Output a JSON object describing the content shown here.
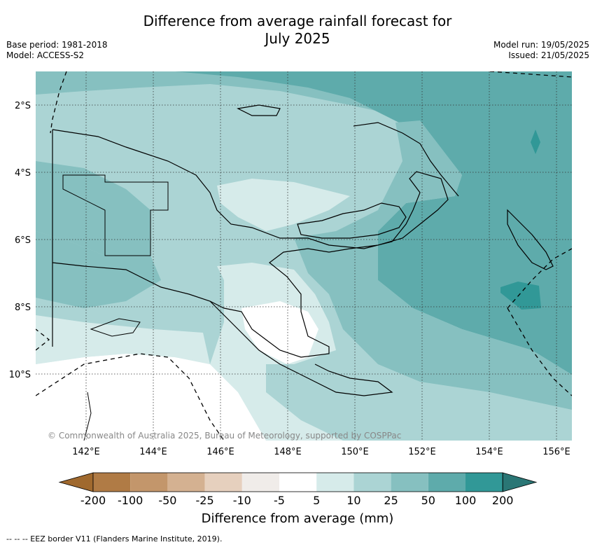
{
  "title_line1": "Difference from average rainfall forecast for",
  "title_line2": "July 2025",
  "base_period": "Base period: 1981-2018",
  "model": "Model: ACCESS-S2",
  "model_run": "Model run: 19/05/2025",
  "issued": "Issued: 21/05/2025",
  "copyright": "© Commonwealth of Australia 2025, Bureau of Meteorology, supported by COSPPac",
  "lon_labels": [
    "142°E",
    "144°E",
    "146°E",
    "148°E",
    "150°E",
    "152°E",
    "154°E",
    "156°E"
  ],
  "lat_labels": [
    "2°S",
    "4°S",
    "6°S",
    "8°S",
    "10°S"
  ],
  "colorbar": {
    "label": "Difference from average (mm)",
    "ticks": [
      "-200",
      "-100",
      "-50",
      "-25",
      "-10",
      "-5",
      "5",
      "10",
      "25",
      "50",
      "100",
      "200"
    ],
    "colors": [
      "#a0692e",
      "#b07b45",
      "#c3966b",
      "#d4b191",
      "#e6d0be",
      "#f0ece9",
      "#ffffff",
      "#d6ebea",
      "#abd4d4",
      "#86c0c0",
      "#5eabab",
      "#319897",
      "#2a7675"
    ]
  },
  "footer": "--  --  -- EEZ border V11 (Flanders Marine Institute, 2019)."
}
